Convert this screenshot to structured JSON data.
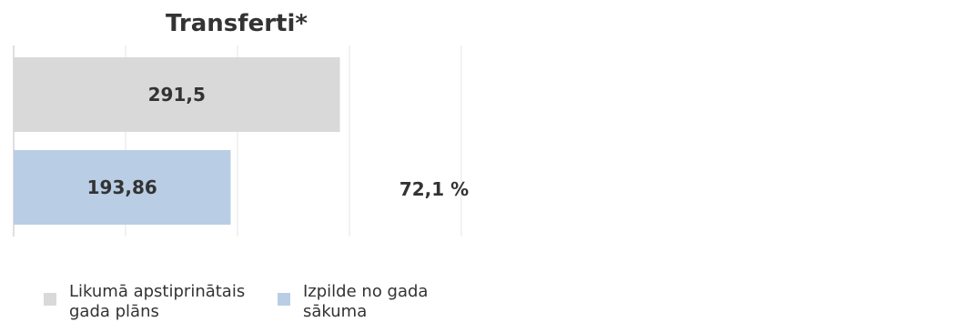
{
  "chart_data": {
    "type": "bar",
    "orientation": "horizontal",
    "title": "Transferti*",
    "categories": [
      "Likumā apstiprinātais gada plāns",
      "Izpilde no gada sākuma"
    ],
    "values": [
      291.5,
      193.86
    ],
    "value_labels": [
      "291,5",
      "193,86"
    ],
    "colors": [
      "#d9d9d9",
      "#b9cde5"
    ],
    "annotation": "72,1 %",
    "xlim": [
      0,
      400
    ],
    "grid": true,
    "xlabel": "",
    "ylabel": "",
    "legend_position": "bottom-left"
  },
  "legend": {
    "items": [
      {
        "label": "Likumā apstiprinātais gada plāns",
        "color": "#d9d9d9"
      },
      {
        "label": "Izpilde no gada sākuma",
        "color": "#b9cde5"
      }
    ]
  }
}
